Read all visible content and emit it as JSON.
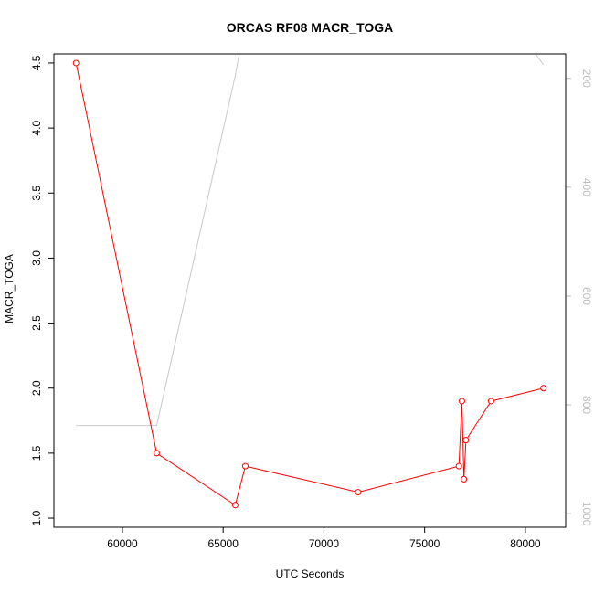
{
  "chart_data": {
    "type": "line",
    "title": "ORCAS RF08 MACR_TOGA",
    "xlabel": "UTC Seconds",
    "ylabel": "MACR_TOGA",
    "xlim": [
      56600,
      82000
    ],
    "ylim": [
      0.93,
      4.57
    ],
    "x_ticks": [
      60000,
      65000,
      70000,
      75000,
      80000
    ],
    "y_ticks": [
      1.0,
      1.5,
      2.0,
      2.5,
      3.0,
      3.5,
      4.0,
      4.5
    ],
    "y_tick_labels": [
      "1.0",
      "1.5",
      "2.0",
      "2.5",
      "3.0",
      "3.5",
      "4.0",
      "4.5"
    ],
    "series": [
      {
        "color": "#ff0000",
        "marker": "open-circle",
        "x": [
          57700,
          61700,
          65600,
          66100,
          71700,
          76700,
          76850,
          76950,
          77050,
          78300,
          80900
        ],
        "y": [
          4.5,
          1.5,
          1.1,
          1.4,
          1.2,
          1.4,
          1.9,
          1.3,
          1.6,
          1.9,
          2.0
        ]
      }
    ],
    "secondary_axis": {
      "side": "right",
      "reversed": true,
      "color": "#bdbdbd",
      "ylim": [
        155,
        1025
      ],
      "ticks": [
        200,
        400,
        600,
        800,
        1000
      ],
      "series": [
        {
          "color": "#c8c8c8",
          "x": [
            57700,
            61700,
            65600,
            65800,
            80500,
            80900
          ],
          "y": [
            838,
            838,
            195,
            155,
            155,
            175
          ]
        }
      ]
    }
  }
}
